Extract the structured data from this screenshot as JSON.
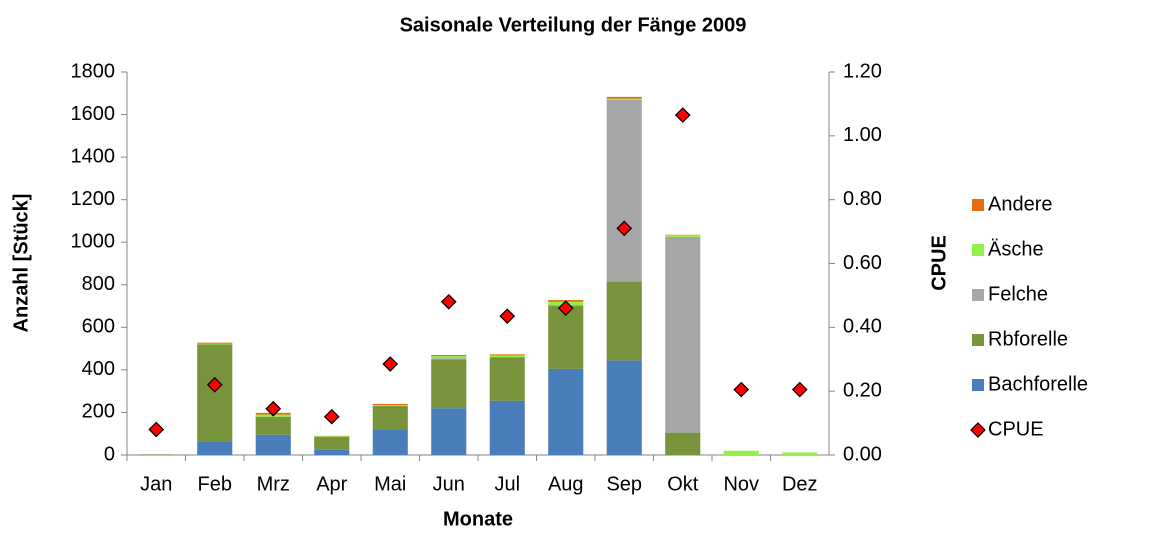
{
  "chart_data": {
    "type": "bar",
    "stacked": true,
    "title": "Saisonale Verteilung der Fänge 2009",
    "x_label": "Monate",
    "y_label": "Anzahl [Stück]",
    "y2_label": "CPUE",
    "categories": [
      "Jan",
      "Feb",
      "Mrz",
      "Apr",
      "Mai",
      "Jun",
      "Jul",
      "Aug",
      "Sep",
      "Okt",
      "Nov",
      "Dez"
    ],
    "series": [
      {
        "name": "Bachforelle",
        "color": "#4a7ebb",
        "values": [
          0,
          65,
          95,
          25,
          120,
          220,
          255,
          405,
          445,
          0,
          0,
          0
        ]
      },
      {
        "name": "Rbforelle",
        "color": "#77933c",
        "values": [
          3,
          455,
          85,
          60,
          110,
          230,
          205,
          295,
          370,
          105,
          0,
          0
        ]
      },
      {
        "name": "Felche",
        "color": "#a6a6a6",
        "values": [
          0,
          0,
          0,
          0,
          0,
          5,
          0,
          5,
          855,
          920,
          0,
          0
        ]
      },
      {
        "name": "Äsche",
        "color": "#92f046",
        "values": [
          0,
          3,
          10,
          3,
          5,
          10,
          8,
          15,
          5,
          8,
          20,
          12
        ]
      },
      {
        "name": "Andere",
        "color": "#e46c0a",
        "values": [
          0,
          5,
          8,
          2,
          5,
          5,
          5,
          8,
          8,
          2,
          0,
          0
        ]
      },
      {
        "name": "CPUE",
        "color": "#ff0000",
        "axis": "y2",
        "marker": "diamond",
        "values": [
          0.08,
          0.22,
          0.145,
          0.12,
          0.285,
          0.48,
          0.435,
          0.46,
          0.71,
          1.065,
          0.205,
          0.205
        ]
      }
    ],
    "ylim": [
      0,
      1800
    ],
    "yticks": [
      0,
      200,
      400,
      600,
      800,
      1000,
      1200,
      1400,
      1600,
      1800
    ],
    "y2lim": [
      0,
      1.2
    ],
    "y2ticks": [
      {
        "value": 0,
        "label": "0.00"
      },
      {
        "value": 0.2,
        "label": "0.20"
      },
      {
        "value": 0.4,
        "label": "0.40"
      },
      {
        "value": 0.6,
        "label": "0.60"
      },
      {
        "value": 0.8,
        "label": "0.80"
      },
      {
        "value": 1.0,
        "label": "1.00"
      },
      {
        "value": 1.2,
        "label": "1.20"
      }
    ],
    "grid": false,
    "legend": "right"
  }
}
